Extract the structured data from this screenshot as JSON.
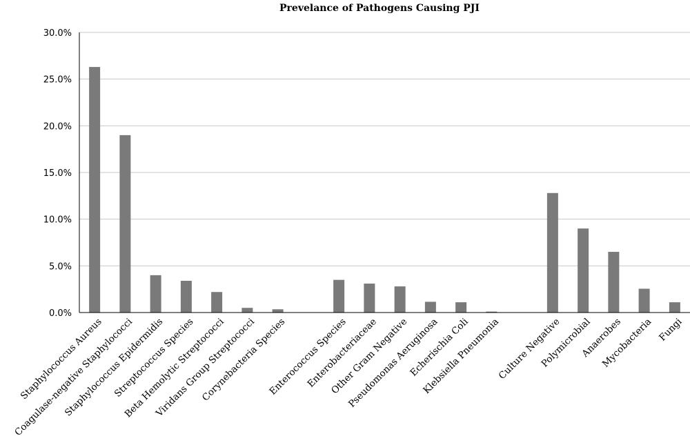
{
  "chart_data": {
    "type": "bar",
    "title": "Prevelance of Pathogens Causing PJI",
    "xlabel": "",
    "ylabel": "",
    "ylim": [
      0,
      30
    ],
    "yticks": [
      "0.0%",
      "5.0%",
      "10.0%",
      "15.0%",
      "20.0%",
      "25.0%",
      "30.0%"
    ],
    "grid": true,
    "legend": "none",
    "bar_color": "#7a7a7a",
    "categories": [
      "Staphylococcus Aureus",
      "Coagulase-negative Staphylococci",
      "Staphylococcus Epidermidis",
      "Streptococcus Species",
      "Beta Hemolytic Streptococci",
      "Viridans Group Streptococci",
      "Corynebacteria Species",
      "",
      "Enterococcus Species",
      "Enterobacteriaceae",
      "Other Gram Negative",
      "Pseudomonas Aeruginosa",
      "Echerischia Coli",
      "Klebsiella Pneumonia",
      "",
      "Culture Negative",
      "Polymicrobial",
      "Anaerobes",
      "Mycobacteria",
      "Fungi"
    ],
    "values": [
      26.3,
      19.0,
      4.0,
      3.4,
      2.2,
      0.5,
      0.35,
      null,
      3.5,
      3.1,
      2.8,
      1.15,
      1.1,
      0.1,
      null,
      12.8,
      9.0,
      6.5,
      2.55,
      1.1
    ]
  }
}
